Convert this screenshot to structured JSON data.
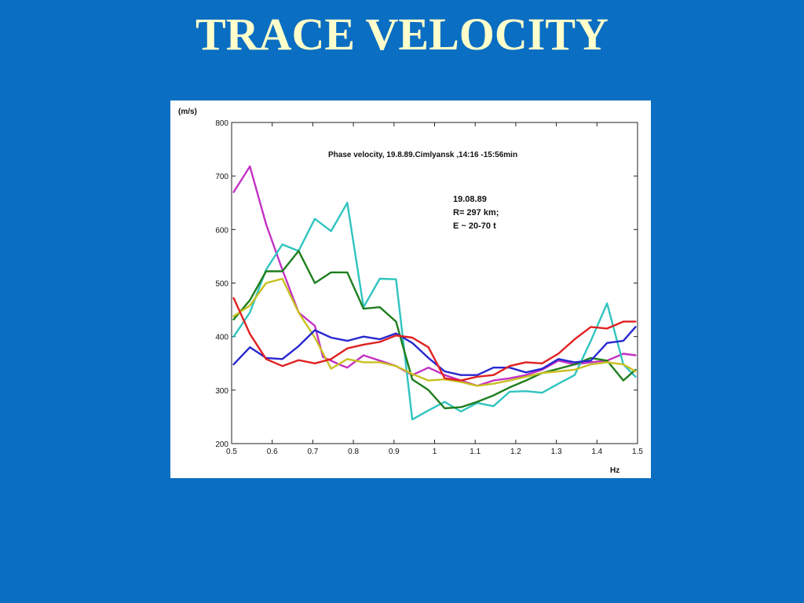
{
  "slide": {
    "title": "TRACE VELOCITY",
    "background_color": "#0A6EC2",
    "title_color": "#FFFFCC"
  },
  "chart_data": {
    "type": "line",
    "title": "Phase velocity, 19.8.89.Cimlyansk ,14:16 -15:56min",
    "annotation": [
      "19.08.89",
      "R= 297 km;",
      "E  ~  20-70 t"
    ],
    "xlabel": "Hz",
    "ylabel": "(m/s)",
    "xlim": [
      0.5,
      1.5
    ],
    "ylim": [
      200,
      800
    ],
    "x_ticks": [
      0.5,
      0.6,
      0.7,
      0.8,
      0.9,
      1,
      1.1,
      1.2,
      1.3,
      1.4,
      1.5
    ],
    "x_tick_labels": [
      "0.5",
      "0.6",
      "0.7",
      "0.8",
      "0.9",
      "1",
      "1.1",
      "1.2",
      "1.3",
      "1.4",
      "1.5"
    ],
    "y_ticks": [
      200,
      300,
      400,
      500,
      600,
      700,
      800
    ],
    "grid": false,
    "series": [
      {
        "color": "#C430C4",
        "points": [
          [
            0.505,
            670
          ],
          [
            0.545,
            718
          ],
          [
            0.585,
            610
          ],
          [
            0.625,
            525
          ],
          [
            0.665,
            445
          ],
          [
            0.705,
            420
          ],
          [
            0.725,
            362
          ],
          [
            0.765,
            348
          ],
          [
            0.785,
            342
          ],
          [
            0.825,
            365
          ],
          [
            0.865,
            355
          ],
          [
            0.905,
            345
          ],
          [
            0.945,
            328
          ],
          [
            0.985,
            342
          ],
          [
            1.025,
            328
          ],
          [
            1.065,
            318
          ],
          [
            1.105,
            308
          ],
          [
            1.145,
            318
          ],
          [
            1.185,
            322
          ],
          [
            1.225,
            328
          ],
          [
            1.265,
            338
          ],
          [
            1.305,
            355
          ],
          [
            1.345,
            348
          ],
          [
            1.385,
            352
          ],
          [
            1.425,
            355
          ],
          [
            1.465,
            368
          ],
          [
            1.495,
            365
          ]
        ]
      },
      {
        "color": "#30C4C0",
        "points": [
          [
            0.505,
            400
          ],
          [
            0.545,
            445
          ],
          [
            0.585,
            525
          ],
          [
            0.625,
            572
          ],
          [
            0.665,
            560
          ],
          [
            0.705,
            620
          ],
          [
            0.745,
            597
          ],
          [
            0.785,
            650
          ],
          [
            0.825,
            455
          ],
          [
            0.865,
            508
          ],
          [
            0.905,
            507
          ],
          [
            0.945,
            245
          ],
          [
            0.985,
            262
          ],
          [
            1.025,
            278
          ],
          [
            1.065,
            260
          ],
          [
            1.105,
            276
          ],
          [
            1.145,
            270
          ],
          [
            1.185,
            297
          ],
          [
            1.225,
            298
          ],
          [
            1.265,
            295
          ],
          [
            1.305,
            312
          ],
          [
            1.345,
            328
          ],
          [
            1.385,
            392
          ],
          [
            1.425,
            462
          ],
          [
            1.465,
            348
          ],
          [
            1.495,
            325
          ]
        ]
      },
      {
        "color": "#1E7E1E",
        "points": [
          [
            0.505,
            432
          ],
          [
            0.545,
            468
          ],
          [
            0.585,
            522
          ],
          [
            0.625,
            522
          ],
          [
            0.665,
            560
          ],
          [
            0.705,
            500
          ],
          [
            0.745,
            520
          ],
          [
            0.785,
            520
          ],
          [
            0.825,
            452
          ],
          [
            0.865,
            455
          ],
          [
            0.905,
            428
          ],
          [
            0.945,
            320
          ],
          [
            0.985,
            300
          ],
          [
            1.025,
            266
          ],
          [
            1.065,
            268
          ],
          [
            1.105,
            278
          ],
          [
            1.145,
            290
          ],
          [
            1.185,
            305
          ],
          [
            1.225,
            318
          ],
          [
            1.265,
            332
          ],
          [
            1.305,
            340
          ],
          [
            1.345,
            348
          ],
          [
            1.385,
            360
          ],
          [
            1.425,
            355
          ],
          [
            1.465,
            318
          ],
          [
            1.495,
            338
          ]
        ]
      },
      {
        "color": "#C8C020",
        "points": [
          [
            0.505,
            438
          ],
          [
            0.545,
            458
          ],
          [
            0.585,
            500
          ],
          [
            0.625,
            508
          ],
          [
            0.665,
            445
          ],
          [
            0.705,
            398
          ],
          [
            0.745,
            340
          ],
          [
            0.785,
            358
          ],
          [
            0.825,
            352
          ],
          [
            0.865,
            352
          ],
          [
            0.905,
            345
          ],
          [
            0.945,
            330
          ],
          [
            0.985,
            318
          ],
          [
            1.025,
            320
          ],
          [
            1.065,
            315
          ],
          [
            1.105,
            308
          ],
          [
            1.145,
            312
          ],
          [
            1.185,
            318
          ],
          [
            1.225,
            325
          ],
          [
            1.265,
            332
          ],
          [
            1.305,
            335
          ],
          [
            1.345,
            338
          ],
          [
            1.385,
            348
          ],
          [
            1.425,
            352
          ],
          [
            1.465,
            348
          ],
          [
            1.495,
            335
          ]
        ]
      },
      {
        "color": "#2828D0",
        "points": [
          [
            0.505,
            348
          ],
          [
            0.545,
            380
          ],
          [
            0.585,
            360
          ],
          [
            0.625,
            358
          ],
          [
            0.665,
            382
          ],
          [
            0.705,
            412
          ],
          [
            0.745,
            398
          ],
          [
            0.785,
            392
          ],
          [
            0.825,
            400
          ],
          [
            0.865,
            395
          ],
          [
            0.905,
            406
          ],
          [
            0.945,
            388
          ],
          [
            0.985,
            360
          ],
          [
            1.025,
            335
          ],
          [
            1.065,
            328
          ],
          [
            1.105,
            328
          ],
          [
            1.145,
            342
          ],
          [
            1.185,
            342
          ],
          [
            1.225,
            333
          ],
          [
            1.265,
            340
          ],
          [
            1.305,
            358
          ],
          [
            1.345,
            352
          ],
          [
            1.385,
            355
          ],
          [
            1.425,
            388
          ],
          [
            1.465,
            392
          ],
          [
            1.495,
            418
          ]
        ]
      },
      {
        "color": "#E02020",
        "points": [
          [
            0.505,
            472
          ],
          [
            0.545,
            405
          ],
          [
            0.585,
            358
          ],
          [
            0.625,
            345
          ],
          [
            0.665,
            356
          ],
          [
            0.705,
            350
          ],
          [
            0.745,
            358
          ],
          [
            0.785,
            378
          ],
          [
            0.825,
            385
          ],
          [
            0.865,
            390
          ],
          [
            0.905,
            402
          ],
          [
            0.945,
            398
          ],
          [
            0.985,
            380
          ],
          [
            1.025,
            322
          ],
          [
            1.065,
            318
          ],
          [
            1.105,
            325
          ],
          [
            1.145,
            328
          ],
          [
            1.185,
            345
          ],
          [
            1.225,
            352
          ],
          [
            1.265,
            350
          ],
          [
            1.305,
            368
          ],
          [
            1.345,
            395
          ],
          [
            1.385,
            418
          ],
          [
            1.425,
            415
          ],
          [
            1.465,
            428
          ],
          [
            1.495,
            428
          ]
        ]
      }
    ]
  }
}
